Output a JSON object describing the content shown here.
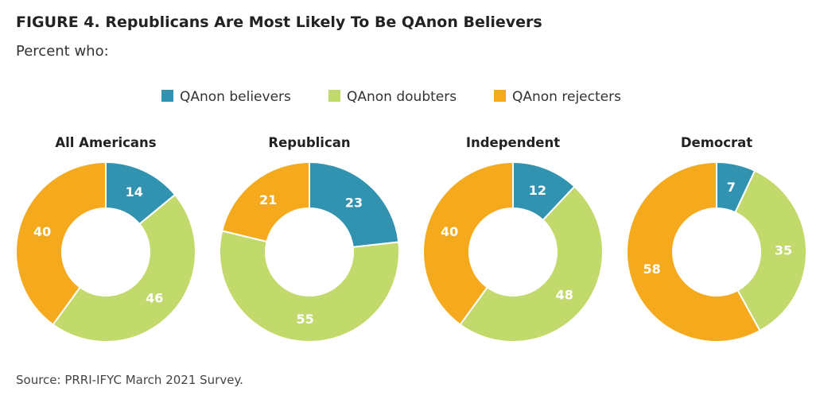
{
  "chart_data": {
    "type": "pie",
    "subtype": "donut",
    "title": "FIGURE 4. Republicans Are Most Likely To Be QAnon Believers",
    "subtitle": "Percent who:",
    "legend_position": "top-center",
    "series_names": [
      "QAnon believers",
      "QAnon doubters",
      "QAnon rejecters"
    ],
    "colors": [
      "#3193b0",
      "#c2d96c",
      "#f5aa1e"
    ],
    "charts": [
      {
        "category": "All Americans",
        "values": [
          14,
          46,
          40
        ]
      },
      {
        "category": "Republican",
        "values": [
          23,
          55,
          21
        ]
      },
      {
        "category": "Independent",
        "values": [
          12,
          48,
          40
        ]
      },
      {
        "category": "Democrat",
        "values": [
          7,
          35,
          58
        ]
      }
    ],
    "source": "Source: PRRI-IFYC March 2021 Survey."
  }
}
